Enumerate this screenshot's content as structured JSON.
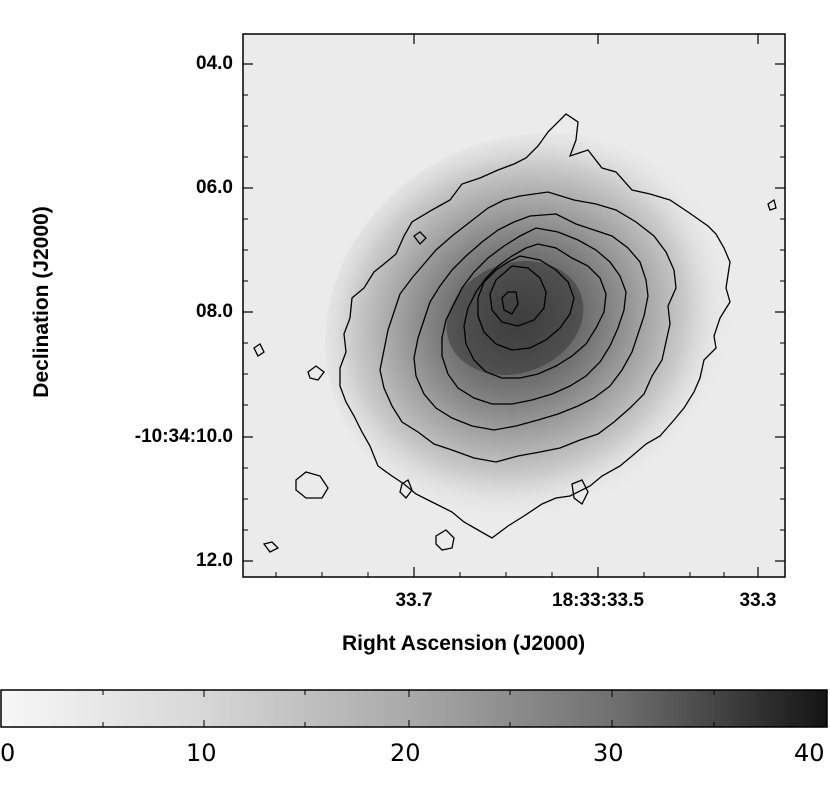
{
  "image": {
    "description_type": "astronomical grayscale image with contour overlay",
    "xlabel": "Right Ascension (J2000)",
    "ylabel": "Declination (J2000)",
    "yticks": [
      "04.0",
      "06.0",
      "08.0",
      "-10:34:10.0",
      "12.0"
    ],
    "xticks": [
      "33.7",
      "18:33:33.5",
      "33.3"
    ],
    "contour_color": "#000000",
    "background_color": "#ececec",
    "peak_color": "#2a2a2a"
  },
  "colorbar": {
    "ticks": [
      "0",
      "10",
      "20",
      "30",
      "40"
    ],
    "min": 0,
    "max": 40,
    "colormap": "gray_reversed"
  }
}
